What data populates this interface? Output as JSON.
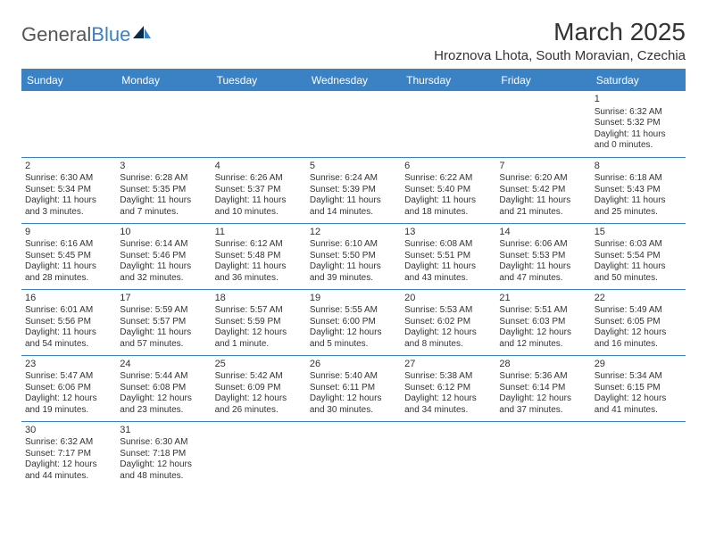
{
  "logo": {
    "text1": "General",
    "text2": "Blue"
  },
  "title": "March 2025",
  "location": "Hroznova Lhota, South Moravian, Czechia",
  "colors": {
    "accent": "#3b82c4",
    "text": "#333333",
    "bg": "#ffffff"
  },
  "fonts": {
    "title_size": 28,
    "location_size": 15,
    "header_size": 12,
    "cell_size": 10
  },
  "grid": {
    "cols": 7,
    "rows": 6,
    "leading_blanks": 6,
    "days_in_month": 31
  },
  "weekdays": [
    "Sunday",
    "Monday",
    "Tuesday",
    "Wednesday",
    "Thursday",
    "Friday",
    "Saturday"
  ],
  "days": [
    {
      "n": 1,
      "sunrise": "6:32 AM",
      "sunset": "5:32 PM",
      "daylight": "11 hours and 0 minutes."
    },
    {
      "n": 2,
      "sunrise": "6:30 AM",
      "sunset": "5:34 PM",
      "daylight": "11 hours and 3 minutes."
    },
    {
      "n": 3,
      "sunrise": "6:28 AM",
      "sunset": "5:35 PM",
      "daylight": "11 hours and 7 minutes."
    },
    {
      "n": 4,
      "sunrise": "6:26 AM",
      "sunset": "5:37 PM",
      "daylight": "11 hours and 10 minutes."
    },
    {
      "n": 5,
      "sunrise": "6:24 AM",
      "sunset": "5:39 PM",
      "daylight": "11 hours and 14 minutes."
    },
    {
      "n": 6,
      "sunrise": "6:22 AM",
      "sunset": "5:40 PM",
      "daylight": "11 hours and 18 minutes."
    },
    {
      "n": 7,
      "sunrise": "6:20 AM",
      "sunset": "5:42 PM",
      "daylight": "11 hours and 21 minutes."
    },
    {
      "n": 8,
      "sunrise": "6:18 AM",
      "sunset": "5:43 PM",
      "daylight": "11 hours and 25 minutes."
    },
    {
      "n": 9,
      "sunrise": "6:16 AM",
      "sunset": "5:45 PM",
      "daylight": "11 hours and 28 minutes."
    },
    {
      "n": 10,
      "sunrise": "6:14 AM",
      "sunset": "5:46 PM",
      "daylight": "11 hours and 32 minutes."
    },
    {
      "n": 11,
      "sunrise": "6:12 AM",
      "sunset": "5:48 PM",
      "daylight": "11 hours and 36 minutes."
    },
    {
      "n": 12,
      "sunrise": "6:10 AM",
      "sunset": "5:50 PM",
      "daylight": "11 hours and 39 minutes."
    },
    {
      "n": 13,
      "sunrise": "6:08 AM",
      "sunset": "5:51 PM",
      "daylight": "11 hours and 43 minutes."
    },
    {
      "n": 14,
      "sunrise": "6:06 AM",
      "sunset": "5:53 PM",
      "daylight": "11 hours and 47 minutes."
    },
    {
      "n": 15,
      "sunrise": "6:03 AM",
      "sunset": "5:54 PM",
      "daylight": "11 hours and 50 minutes."
    },
    {
      "n": 16,
      "sunrise": "6:01 AM",
      "sunset": "5:56 PM",
      "daylight": "11 hours and 54 minutes."
    },
    {
      "n": 17,
      "sunrise": "5:59 AM",
      "sunset": "5:57 PM",
      "daylight": "11 hours and 57 minutes."
    },
    {
      "n": 18,
      "sunrise": "5:57 AM",
      "sunset": "5:59 PM",
      "daylight": "12 hours and 1 minute."
    },
    {
      "n": 19,
      "sunrise": "5:55 AM",
      "sunset": "6:00 PM",
      "daylight": "12 hours and 5 minutes."
    },
    {
      "n": 20,
      "sunrise": "5:53 AM",
      "sunset": "6:02 PM",
      "daylight": "12 hours and 8 minutes."
    },
    {
      "n": 21,
      "sunrise": "5:51 AM",
      "sunset": "6:03 PM",
      "daylight": "12 hours and 12 minutes."
    },
    {
      "n": 22,
      "sunrise": "5:49 AM",
      "sunset": "6:05 PM",
      "daylight": "12 hours and 16 minutes."
    },
    {
      "n": 23,
      "sunrise": "5:47 AM",
      "sunset": "6:06 PM",
      "daylight": "12 hours and 19 minutes."
    },
    {
      "n": 24,
      "sunrise": "5:44 AM",
      "sunset": "6:08 PM",
      "daylight": "12 hours and 23 minutes."
    },
    {
      "n": 25,
      "sunrise": "5:42 AM",
      "sunset": "6:09 PM",
      "daylight": "12 hours and 26 minutes."
    },
    {
      "n": 26,
      "sunrise": "5:40 AM",
      "sunset": "6:11 PM",
      "daylight": "12 hours and 30 minutes."
    },
    {
      "n": 27,
      "sunrise": "5:38 AM",
      "sunset": "6:12 PM",
      "daylight": "12 hours and 34 minutes."
    },
    {
      "n": 28,
      "sunrise": "5:36 AM",
      "sunset": "6:14 PM",
      "daylight": "12 hours and 37 minutes."
    },
    {
      "n": 29,
      "sunrise": "5:34 AM",
      "sunset": "6:15 PM",
      "daylight": "12 hours and 41 minutes."
    },
    {
      "n": 30,
      "sunrise": "6:32 AM",
      "sunset": "7:17 PM",
      "daylight": "12 hours and 44 minutes."
    },
    {
      "n": 31,
      "sunrise": "6:30 AM",
      "sunset": "7:18 PM",
      "daylight": "12 hours and 48 minutes."
    }
  ],
  "labels": {
    "sunrise": "Sunrise:",
    "sunset": "Sunset:",
    "daylight": "Daylight:"
  }
}
